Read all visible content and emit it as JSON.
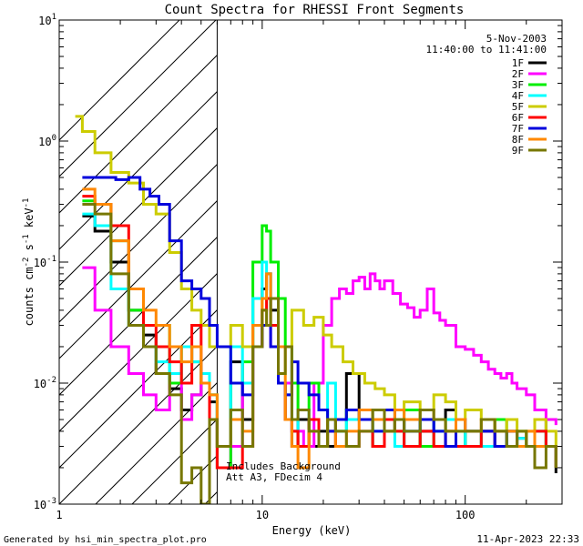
{
  "chart_data": {
    "type": "line",
    "title": "Count Spectra for RHESSI Front Segments",
    "xlabel": "Energy (keV)",
    "ylabel": {
      "base": "counts cm",
      "exp1": "-2",
      "mid": " s",
      "exp2": "-1",
      "tail": " keV",
      "exp3": "-1"
    },
    "xscale": "log",
    "yscale": "log",
    "xlim": [
      1,
      300
    ],
    "ylim": [
      0.001,
      10
    ],
    "xticks": [
      {
        "v": 1,
        "label": "1"
      },
      {
        "v": 10,
        "label": "10"
      },
      {
        "v": 100,
        "label": "100"
      }
    ],
    "yticks": [
      {
        "v": 10,
        "base": "10",
        "exp": "1"
      },
      {
        "v": 1,
        "base": "10",
        "exp": "0"
      },
      {
        "v": 0.1,
        "base": "10",
        "exp": "-1"
      },
      {
        "v": 0.01,
        "base": "10",
        "exp": "-2"
      },
      {
        "v": 0.001,
        "base": "10",
        "exp": "-3"
      }
    ],
    "attenuator_boundary_kev": 6,
    "date": "5-Nov-2003",
    "time_range": "11:40:00 to 11:41:00",
    "annotation_line1": "Includes Background",
    "annotation_line2": "Att A3, FDecim 4",
    "legend_position": "top-right",
    "series": [
      {
        "name": "1F",
        "color": "#000000",
        "x": [
          1.3,
          1.5,
          1.8,
          2.2,
          2.6,
          3.0,
          3.5,
          4.0,
          4.5,
          5.0,
          5.5,
          6.0,
          7,
          8,
          9,
          10,
          10.5,
          11,
          12,
          13,
          14,
          15,
          17,
          19,
          21,
          23,
          26,
          30,
          35,
          40,
          45,
          50,
          60,
          70,
          80,
          90,
          100,
          120,
          140,
          160,
          180,
          200,
          220,
          250,
          280
        ],
        "y": [
          0.24,
          0.18,
          0.1,
          0.04,
          0.025,
          0.012,
          0.009,
          0.006,
          0.008,
          0.01,
          0.007,
          0.003,
          0.015,
          0.005,
          0.05,
          0.06,
          0.08,
          0.04,
          0.01,
          0.005,
          0.003,
          0.005,
          0.003,
          0.004,
          0.003,
          0.005,
          0.012,
          0.006,
          0.003,
          0.004,
          0.005,
          0.003,
          0.004,
          0.005,
          0.006,
          0.003,
          0.004,
          0.004,
          0.003,
          0.004,
          0.0035,
          0.003,
          0.005,
          0.003,
          0.0018
        ]
      },
      {
        "name": "2F",
        "color": "#ff00ff",
        "x": [
          1.3,
          1.5,
          1.8,
          2.2,
          2.6,
          3.0,
          3.5,
          4.0,
          4.5,
          5.0,
          5.5,
          6.0,
          7,
          8,
          9,
          10,
          11,
          12,
          14,
          16,
          18,
          20,
          22,
          24,
          26,
          28,
          30,
          32,
          34,
          36,
          38,
          40,
          44,
          48,
          52,
          56,
          60,
          65,
          70,
          75,
          80,
          90,
          100,
          110,
          120,
          130,
          140,
          150,
          160,
          170,
          180,
          200,
          220,
          250,
          280
        ],
        "y": [
          0.09,
          0.04,
          0.02,
          0.012,
          0.008,
          0.006,
          0.01,
          0.005,
          0.008,
          0.01,
          0.005,
          0.002,
          0.003,
          0.01,
          0.02,
          0.03,
          0.02,
          0.01,
          0.004,
          0.003,
          0.01,
          0.03,
          0.05,
          0.06,
          0.055,
          0.07,
          0.075,
          0.06,
          0.08,
          0.07,
          0.06,
          0.07,
          0.055,
          0.045,
          0.042,
          0.035,
          0.04,
          0.06,
          0.038,
          0.033,
          0.03,
          0.02,
          0.019,
          0.017,
          0.015,
          0.013,
          0.012,
          0.011,
          0.012,
          0.01,
          0.009,
          0.008,
          0.006,
          0.005,
          0.0045
        ]
      },
      {
        "name": "3F",
        "color": "#00ee00",
        "x": [
          1.3,
          1.5,
          1.8,
          2.2,
          2.6,
          3.0,
          3.5,
          4.0,
          4.5,
          5.0,
          5.5,
          6.0,
          7,
          8,
          9,
          10,
          10.5,
          11,
          12,
          13,
          14,
          15,
          17,
          19,
          21,
          23,
          26,
          30,
          35,
          40,
          45,
          50,
          60,
          70,
          80,
          90,
          100,
          120,
          140,
          160,
          180,
          200,
          220,
          250,
          280
        ],
        "y": [
          0.32,
          0.3,
          0.15,
          0.04,
          0.03,
          0.03,
          0.01,
          0.02,
          0.015,
          0.01,
          0.008,
          0.002,
          0.01,
          0.015,
          0.1,
          0.2,
          0.18,
          0.1,
          0.05,
          0.02,
          0.01,
          0.006,
          0.01,
          0.006,
          0.004,
          0.004,
          0.006,
          0.005,
          0.003,
          0.005,
          0.004,
          0.006,
          0.003,
          0.004,
          0.005,
          0.004,
          0.003,
          0.004,
          0.005,
          0.003,
          0.004,
          0.003,
          0.004,
          0.003,
          0.002
        ]
      },
      {
        "name": "4F",
        "color": "#00ffff",
        "x": [
          1.3,
          1.5,
          1.8,
          2.2,
          2.6,
          3.0,
          3.5,
          4.0,
          4.5,
          5.0,
          5.5,
          6.0,
          7,
          8,
          9,
          10,
          10.5,
          11,
          12,
          13,
          14,
          15,
          17,
          19,
          21,
          23,
          26,
          30,
          35,
          40,
          45,
          50,
          60,
          70,
          80,
          90,
          100,
          120,
          140,
          160,
          180,
          200,
          220,
          250,
          280
        ],
        "y": [
          0.25,
          0.2,
          0.06,
          0.03,
          0.02,
          0.015,
          0.012,
          0.02,
          0.015,
          0.012,
          0.008,
          0.003,
          0.02,
          0.01,
          0.05,
          0.1,
          0.08,
          0.05,
          0.01,
          0.008,
          0.004,
          0.006,
          0.005,
          0.003,
          0.01,
          0.004,
          0.005,
          0.006,
          0.004,
          0.005,
          0.003,
          0.004,
          0.005,
          0.004,
          0.005,
          0.003,
          0.004,
          0.003,
          0.004,
          0.003,
          0.0035,
          0.003,
          0.004,
          0.003,
          0.0025
        ]
      },
      {
        "name": "5F",
        "color": "#cccc00",
        "x": [
          1.2,
          1.3,
          1.5,
          1.8,
          2.2,
          2.6,
          3.0,
          3.5,
          4.0,
          4.5,
          5.0,
          5.5,
          6.0,
          7,
          8,
          9,
          10,
          11,
          12,
          13,
          14,
          16,
          18,
          20,
          22,
          25,
          28,
          32,
          36,
          40,
          45,
          50,
          60,
          70,
          80,
          90,
          100,
          120,
          140,
          160,
          180,
          200,
          220,
          250,
          280
        ],
        "y": [
          1.6,
          1.2,
          0.8,
          0.55,
          0.45,
          0.3,
          0.25,
          0.12,
          0.06,
          0.04,
          0.03,
          0.02,
          0.02,
          0.03,
          0.02,
          0.03,
          0.05,
          0.03,
          0.02,
          0.02,
          0.04,
          0.03,
          0.035,
          0.025,
          0.02,
          0.015,
          0.012,
          0.01,
          0.009,
          0.008,
          0.006,
          0.007,
          0.006,
          0.008,
          0.007,
          0.005,
          0.006,
          0.005,
          0.004,
          0.005,
          0.004,
          0.004,
          0.005,
          0.004,
          0.003
        ]
      },
      {
        "name": "6F",
        "color": "#ff0000",
        "x": [
          1.3,
          1.5,
          1.8,
          2.2,
          2.6,
          3.0,
          3.5,
          4.0,
          4.5,
          5.0,
          5.5,
          6.0,
          7,
          8,
          9,
          10,
          10.5,
          11,
          12,
          13,
          14,
          15,
          17,
          19,
          21,
          23,
          26,
          30,
          35,
          40,
          45,
          50,
          60,
          70,
          80,
          90,
          100,
          120,
          140,
          160,
          180,
          200,
          220,
          250,
          280
        ],
        "y": [
          0.35,
          0.3,
          0.2,
          0.06,
          0.03,
          0.02,
          0.015,
          0.01,
          0.03,
          0.01,
          0.005,
          0.002,
          0.002,
          0.003,
          0.02,
          0.04,
          0.05,
          0.03,
          0.01,
          0.005,
          0.004,
          0.003,
          0.005,
          0.003,
          0.004,
          0.003,
          0.003,
          0.004,
          0.003,
          0.005,
          0.004,
          0.003,
          0.004,
          0.003,
          0.004,
          0.003,
          0.003,
          0.004,
          0.003,
          0.003,
          0.003,
          0.003,
          0.004,
          0.003,
          0.002
        ]
      },
      {
        "name": "7F",
        "color": "#0000dd",
        "x": [
          1.3,
          1.6,
          1.9,
          2.2,
          2.5,
          2.8,
          3.1,
          3.5,
          4.0,
          4.5,
          5.0,
          5.5,
          6.0,
          7,
          8,
          9,
          10,
          11,
          12,
          13,
          14,
          15,
          17,
          19,
          21,
          23,
          26,
          30,
          35,
          40,
          45,
          50,
          60,
          70,
          80,
          90,
          100,
          120,
          140,
          160,
          180,
          200,
          220,
          250,
          280
        ],
        "y": [
          0.5,
          0.5,
          0.48,
          0.5,
          0.4,
          0.35,
          0.3,
          0.15,
          0.07,
          0.06,
          0.05,
          0.03,
          0.02,
          0.01,
          0.008,
          0.02,
          0.03,
          0.02,
          0.01,
          0.008,
          0.015,
          0.01,
          0.008,
          0.006,
          0.004,
          0.005,
          0.006,
          0.005,
          0.004,
          0.006,
          0.005,
          0.004,
          0.005,
          0.004,
          0.003,
          0.005,
          0.004,
          0.004,
          0.003,
          0.004,
          0.003,
          0.003,
          0.003,
          0.003,
          0.002
        ]
      },
      {
        "name": "8F",
        "color": "#ff8800",
        "x": [
          1.3,
          1.5,
          1.8,
          2.2,
          2.6,
          3.0,
          3.5,
          4.0,
          4.5,
          5.0,
          5.5,
          6.0,
          7,
          8,
          9,
          10,
          10.5,
          11,
          12,
          13,
          14,
          15,
          17,
          19,
          21,
          23,
          26,
          30,
          35,
          40,
          45,
          50,
          60,
          70,
          80,
          90,
          100,
          120,
          140,
          160,
          180,
          200,
          220,
          250,
          280
        ],
        "y": [
          0.4,
          0.3,
          0.15,
          0.06,
          0.04,
          0.03,
          0.02,
          0.015,
          0.02,
          0.01,
          0.008,
          0.003,
          0.005,
          0.004,
          0.03,
          0.05,
          0.08,
          0.05,
          0.02,
          0.005,
          0.003,
          0.002,
          0.004,
          0.003,
          0.005,
          0.003,
          0.004,
          0.006,
          0.005,
          0.004,
          0.006,
          0.005,
          0.006,
          0.005,
          0.004,
          0.005,
          0.004,
          0.005,
          0.004,
          0.004,
          0.003,
          0.004,
          0.003,
          0.003,
          0.002
        ]
      },
      {
        "name": "9F",
        "color": "#777700",
        "x": [
          1.3,
          1.5,
          1.8,
          2.2,
          2.6,
          3.0,
          3.5,
          4.0,
          4.5,
          5.0,
          5.5,
          6.0,
          7,
          8,
          9,
          10,
          10.5,
          11,
          12,
          13,
          14,
          15,
          17,
          19,
          21,
          23,
          26,
          30,
          35,
          40,
          45,
          50,
          60,
          70,
          80,
          90,
          100,
          120,
          140,
          160,
          180,
          200,
          220,
          250,
          280
        ],
        "y": [
          0.3,
          0.25,
          0.08,
          0.03,
          0.02,
          0.012,
          0.008,
          0.0015,
          0.002,
          0.001,
          0.005,
          0.003,
          0.006,
          0.003,
          0.02,
          0.04,
          0.03,
          0.05,
          0.012,
          0.02,
          0.005,
          0.006,
          0.004,
          0.003,
          0.005,
          0.004,
          0.003,
          0.004,
          0.006,
          0.004,
          0.005,
          0.004,
          0.006,
          0.005,
          0.004,
          0.004,
          0.004,
          0.005,
          0.004,
          0.003,
          0.004,
          0.003,
          0.002,
          0.003,
          0.002
        ]
      }
    ]
  },
  "footer": {
    "generated_by": "Generated by hsi_min_spectra_plot.pro",
    "timestamp": "11-Apr-2023 22:33"
  }
}
